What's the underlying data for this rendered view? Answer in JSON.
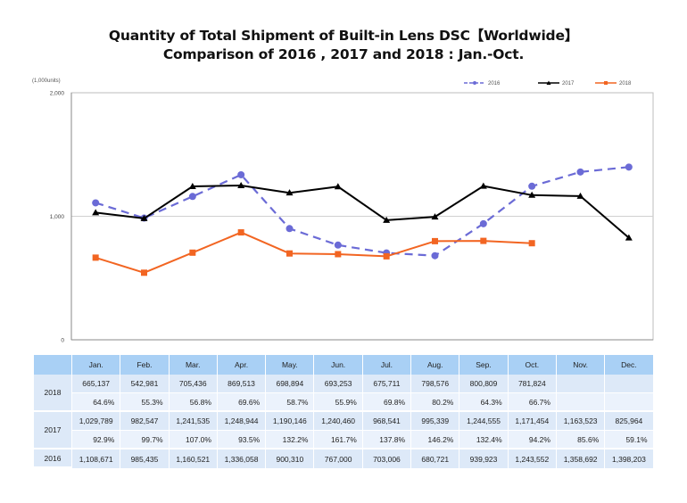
{
  "title_line1": "Quantity of Total Shipment of Built-in Lens DSC【Worldwide】",
  "title_line2": "Comparison of 2016 , 2017 and 2018 : Jan.-Oct.",
  "chart_data": {
    "type": "line",
    "title": "Quantity of Total Shipment of Built-in Lens DSC【Worldwide】 Comparison of 2016 , 2017 and 2018 : Jan.-Oct.",
    "unit_label": "(1,000units)",
    "xlabel": "",
    "ylabel": "(1,000units)",
    "ylim": [
      0,
      2000
    ],
    "yticks": [
      0,
      1000,
      2000
    ],
    "ytick_labels": [
      "0",
      "1,000",
      "2,000"
    ],
    "grid": true,
    "legend_position": "top-right",
    "categories": [
      "Jan.",
      "Feb.",
      "Mar.",
      "Apr.",
      "May.",
      "Jun.",
      "Jul.",
      "Aug.",
      "Sep.",
      "Oct.",
      "Nov.",
      "Dec."
    ],
    "series": [
      {
        "name": "2016",
        "color": "#6b6bd6",
        "style": "dashed",
        "marker": "circle",
        "values": [
          1108.671,
          985.435,
          1160.521,
          1336.058,
          900.31,
          767.0,
          703.006,
          680.721,
          939.923,
          1243.552,
          1358.692,
          1398.203
        ]
      },
      {
        "name": "2017",
        "color": "#000000",
        "style": "solid",
        "marker": "triangle",
        "values": [
          1029.789,
          982.547,
          1241.535,
          1248.944,
          1190.146,
          1240.46,
          968.541,
          995.339,
          1244.555,
          1171.454,
          1163.523,
          825.964
        ]
      },
      {
        "name": "2018",
        "color": "#f26522",
        "style": "solid",
        "marker": "square",
        "values": [
          665.137,
          542.981,
          705.436,
          869.513,
          698.894,
          693.253,
          675.711,
          798.576,
          800.809,
          781.824,
          null,
          null
        ]
      }
    ]
  },
  "table": {
    "headers": [
      "Jan.",
      "Feb.",
      "Mar.",
      "Apr.",
      "May.",
      "Jun.",
      "Jul.",
      "Aug.",
      "Sep.",
      "Oct.",
      "Nov.",
      "Dec."
    ],
    "rows": [
      {
        "year": "2018",
        "values": [
          "665,137",
          "542,981",
          "705,436",
          "869,513",
          "698,894",
          "693,253",
          "675,711",
          "798,576",
          "800,809",
          "781,824",
          "",
          ""
        ],
        "percents": [
          "64.6%",
          "55.3%",
          "56.8%",
          "69.6%",
          "58.7%",
          "55.9%",
          "69.8%",
          "80.2%",
          "64.3%",
          "66.7%",
          "",
          ""
        ]
      },
      {
        "year": "2017",
        "values": [
          "1,029,789",
          "982,547",
          "1,241,535",
          "1,248,944",
          "1,190,146",
          "1,240,460",
          "968,541",
          "995,339",
          "1,244,555",
          "1,171,454",
          "1,163,523",
          "825,964"
        ],
        "percents": [
          "92.9%",
          "99.7%",
          "107.0%",
          "93.5%",
          "132.2%",
          "161.7%",
          "137.8%",
          "146.2%",
          "132.4%",
          "94.2%",
          "85.6%",
          "59.1%"
        ]
      },
      {
        "year": "2016",
        "values": [
          "1,108,671",
          "985,435",
          "1,160,521",
          "1,336,058",
          "900,310",
          "767,000",
          "703,006",
          "680,721",
          "939,923",
          "1,243,552",
          "1,358,692",
          "1,398,203"
        ]
      }
    ]
  }
}
